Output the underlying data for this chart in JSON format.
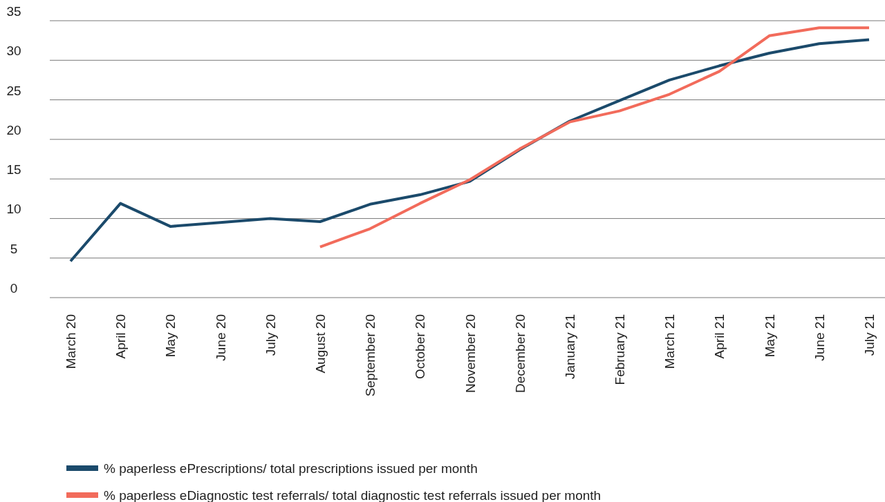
{
  "chart_data": {
    "type": "line",
    "categories": [
      "March 20",
      "April 20",
      "May 20",
      "June 20",
      "July 20",
      "August 20",
      "September 20",
      "October 20",
      "November 20",
      "December 20",
      "January 21",
      "February 21",
      "March 21",
      "April 21",
      "May 21",
      "June 21",
      "July 21"
    ],
    "series": [
      {
        "name": "% paperless ePrescriptions/ total prescriptions issued per month",
        "color": "#1b4a6b",
        "values": [
          4.6,
          11.9,
          9.0,
          9.5,
          10.0,
          9.6,
          11.8,
          13.0,
          14.7,
          18.7,
          22.3,
          24.9,
          27.5,
          29.3,
          30.9,
          32.1,
          32.6
        ]
      },
      {
        "name": "% paperless eDiagnostic test referrals/ total diagnostic test referrals issued per month",
        "color": "#f26b5b",
        "values": [
          null,
          null,
          null,
          null,
          null,
          6.4,
          8.7,
          11.9,
          14.9,
          18.8,
          22.2,
          23.6,
          25.7,
          28.6,
          33.1,
          34.1,
          34.1
        ]
      }
    ],
    "ylim": [
      0,
      35
    ],
    "yticks": [
      0,
      5,
      10,
      15,
      20,
      25,
      30,
      35
    ],
    "grid": "y",
    "legend": "bottom",
    "marker": "none",
    "line_style": "solid"
  }
}
